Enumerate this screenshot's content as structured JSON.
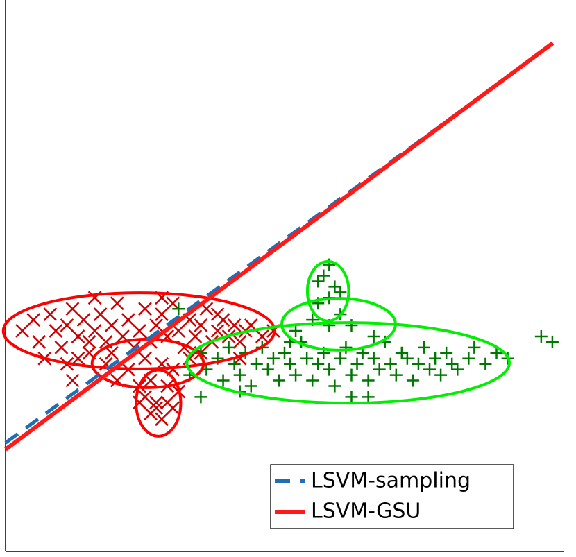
{
  "chart_data": {
    "type": "scatter",
    "xlim": [
      0,
      100
    ],
    "ylim": [
      0,
      100
    ],
    "legend_position": "lower right",
    "point_groups": [
      {
        "color": "#cc0000",
        "marker": "x",
        "x": [
          3,
          5,
          6,
          8,
          9,
          10,
          11,
          12,
          13,
          14,
          15,
          16,
          17,
          18,
          19,
          20,
          21,
          22,
          23,
          24,
          25,
          26,
          27,
          28,
          29,
          30,
          31,
          32,
          33,
          34,
          35,
          36,
          37,
          38,
          39,
          40,
          41,
          42,
          43,
          44,
          46,
          48,
          13,
          18,
          22,
          25,
          28,
          30,
          33,
          20,
          24,
          26,
          29,
          31,
          25,
          27,
          29,
          26,
          28,
          27,
          30,
          24,
          12,
          15,
          19,
          35,
          38,
          7,
          42,
          16,
          28,
          11
        ],
        "values": [
          40,
          42,
          38,
          43,
          40,
          37,
          41,
          44,
          39,
          42,
          36,
          40,
          43,
          38,
          41,
          45,
          39,
          42,
          37,
          40,
          44,
          38,
          41,
          43,
          39,
          45,
          40,
          37,
          42,
          39,
          41,
          44,
          38,
          40,
          42,
          39,
          41,
          38,
          40,
          41,
          39,
          40,
          35,
          34,
          33,
          35,
          34,
          33,
          35,
          31,
          30,
          31,
          30,
          29,
          28,
          27,
          27,
          25,
          24,
          26,
          26,
          27,
          31,
          38,
          36,
          36,
          43,
          35,
          35,
          46,
          46,
          34
        ]
      },
      {
        "color": "#007700",
        "marker": "+",
        "x": [
          33,
          35,
          36,
          38,
          39,
          40,
          41,
          42,
          43,
          44,
          45,
          46,
          47,
          48,
          49,
          50,
          51,
          52,
          53,
          54,
          55,
          56,
          57,
          58,
          59,
          60,
          61,
          62,
          63,
          64,
          65,
          66,
          67,
          68,
          69,
          70,
          71,
          72,
          73,
          74,
          75,
          76,
          77,
          78,
          79,
          80,
          81,
          83,
          84,
          86,
          88,
          90,
          96,
          98,
          42,
          62,
          65,
          52,
          55,
          58,
          60,
          62,
          56,
          58,
          59,
          57,
          58,
          56,
          60,
          51,
          66,
          31,
          35
        ],
        "values": [
          32,
          36,
          33,
          35,
          31,
          37,
          34,
          32,
          36,
          30,
          34,
          37,
          33,
          35,
          31,
          36,
          34,
          32,
          38,
          35,
          31,
          34,
          36,
          33,
          30,
          35,
          37,
          32,
          34,
          36,
          31,
          35,
          33,
          38,
          34,
          32,
          36,
          35,
          31,
          34,
          37,
          33,
          35,
          32,
          36,
          34,
          33,
          35,
          37,
          34,
          36,
          35,
          39,
          38,
          29,
          28,
          28,
          40,
          42,
          41,
          43,
          41,
          45,
          46,
          48,
          50,
          52,
          49,
          47,
          38,
          39,
          44,
          28
        ]
      }
    ],
    "ellipses": [
      {
        "color": "#ff0000",
        "cx": 23.9,
        "cy": 40.0,
        "rx": 24.3,
        "ry": 6.9
      },
      {
        "color": "#ff0000",
        "cx": 25.5,
        "cy": 34.1,
        "rx": 10.0,
        "ry": 4.4
      },
      {
        "color": "#ff0000",
        "cx": 27.4,
        "cy": 26.9,
        "rx": 4.0,
        "ry": 6.0
      },
      {
        "color": "#00ee00",
        "cx": 61.4,
        "cy": 34.2,
        "rx": 28.9,
        "ry": 7.3
      },
      {
        "color": "#00ee00",
        "cx": 59.7,
        "cy": 41.2,
        "rx": 10.2,
        "ry": 4.7
      },
      {
        "color": "#00ee00",
        "cx": 57.8,
        "cy": 47.2,
        "rx": 3.7,
        "ry": 5.4
      }
    ],
    "lines": [
      {
        "name": "LSVM-sampling",
        "color": "#1f6fb4",
        "dashed": true,
        "x": [
          0,
          98
        ],
        "values": [
          19.7,
          92
        ]
      },
      {
        "name": "LSVM-GSU",
        "color": "#ff1a1a",
        "dashed": false,
        "x": [
          0,
          98.1
        ],
        "values": [
          18.5,
          92.2
        ]
      }
    ]
  }
}
